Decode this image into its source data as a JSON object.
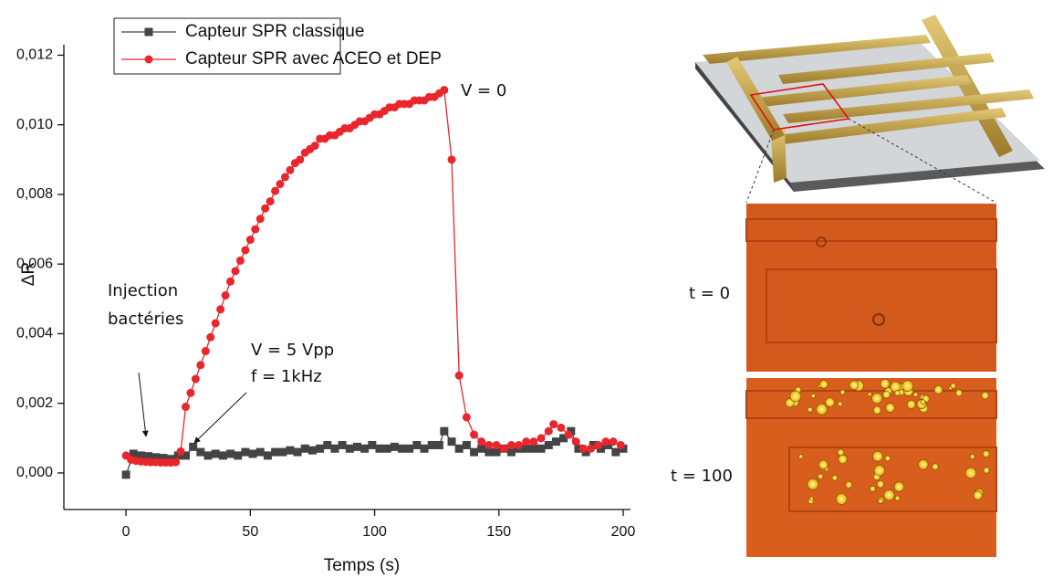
{
  "chart_data": {
    "type": "line",
    "xlabel": "Temps (s)",
    "ylabel": "ΔR",
    "xlim": [
      -25,
      200
    ],
    "ylim": [
      -0.00105,
      0.0123
    ],
    "xticks": [
      0,
      50,
      100,
      150,
      200
    ],
    "yticks": [
      {
        "value": 0,
        "label": "0,000"
      },
      {
        "value": 0.002,
        "label": "0,002"
      },
      {
        "value": 0.004,
        "label": "0,004"
      },
      {
        "value": 0.006,
        "label": "0,006"
      },
      {
        "value": 0.008,
        "label": "0,008"
      },
      {
        "value": 0.01,
        "label": "0,010"
      },
      {
        "value": 0.012,
        "label": "0,012"
      }
    ],
    "legend": "upper left",
    "series": [
      {
        "name": "Capteur SPR classique",
        "color": "#444444",
        "marker": "square",
        "x": [
          0,
          3,
          6,
          9,
          12,
          15,
          18,
          21,
          24,
          27,
          30,
          33,
          36,
          39,
          42,
          45,
          48,
          51,
          54,
          57,
          60,
          63,
          66,
          69,
          72,
          75,
          78,
          81,
          84,
          87,
          90,
          93,
          96,
          99,
          102,
          105,
          108,
          111,
          114,
          117,
          120,
          123,
          126,
          128,
          131,
          134,
          137,
          140,
          143,
          146,
          149,
          152,
          155,
          158,
          161,
          164,
          167,
          170,
          173,
          176,
          179,
          182,
          185,
          188,
          191,
          194,
          197,
          200
        ],
        "values": [
          -5e-05,
          0.00055,
          0.0005,
          0.00048,
          0.00045,
          0.00043,
          0.0004,
          0.0005,
          0.0005,
          0.00075,
          0.0006,
          0.0005,
          0.00055,
          0.0005,
          0.00055,
          0.0005,
          0.0006,
          0.00055,
          0.0006,
          0.0005,
          0.0006,
          0.0006,
          0.00065,
          0.0006,
          0.0007,
          0.00065,
          0.0007,
          0.0008,
          0.0007,
          0.0008,
          0.0007,
          0.00075,
          0.0007,
          0.0008,
          0.0007,
          0.0007,
          0.00075,
          0.0007,
          0.0007,
          0.0008,
          0.0007,
          0.0008,
          0.0008,
          0.0012,
          0.0009,
          0.0007,
          0.0008,
          0.0006,
          0.0007,
          0.0006,
          0.0006,
          0.0007,
          0.0006,
          0.0007,
          0.0007,
          0.0007,
          0.0007,
          0.0008,
          0.0009,
          0.001,
          0.0012,
          0.0007,
          0.0006,
          0.0008,
          0.0007,
          0.0008,
          0.0006,
          0.0007
        ]
      },
      {
        "name": "Capteur SPR avec ACEO et DEP",
        "color": "#e8262b",
        "marker": "circle",
        "x": [
          0,
          2,
          4,
          6,
          8,
          10,
          12,
          14,
          16,
          18,
          20,
          22,
          24,
          26,
          28,
          30,
          32,
          34,
          36,
          38,
          40,
          42,
          44,
          46,
          48,
          50,
          52,
          54,
          56,
          58,
          60,
          62,
          64,
          66,
          68,
          70,
          72,
          74,
          76,
          78,
          80,
          82,
          84,
          86,
          88,
          90,
          92,
          94,
          96,
          98,
          100,
          102,
          104,
          106,
          108,
          110,
          112,
          114,
          116,
          118,
          120,
          122,
          124,
          126,
          128,
          131,
          134,
          137,
          140,
          143,
          146,
          149,
          152,
          155,
          158,
          161,
          164,
          167,
          170,
          172,
          175,
          178,
          181,
          184,
          187,
          190,
          193,
          196,
          199
        ],
        "values": [
          0.0005,
          0.00038,
          0.00035,
          0.00033,
          0.00032,
          0.00031,
          0.00031,
          0.0003,
          0.0003,
          0.0003,
          0.00031,
          0.00062,
          0.0019,
          0.0023,
          0.0027,
          0.0031,
          0.0035,
          0.0039,
          0.0043,
          0.0047,
          0.0051,
          0.0055,
          0.0058,
          0.0061,
          0.0064,
          0.0067,
          0.007,
          0.0073,
          0.0076,
          0.0078,
          0.0081,
          0.0083,
          0.0085,
          0.0087,
          0.0089,
          0.009,
          0.0092,
          0.0093,
          0.0094,
          0.0096,
          0.0096,
          0.0097,
          0.0097,
          0.0098,
          0.0099,
          0.0099,
          0.01,
          0.0101,
          0.0101,
          0.0102,
          0.0103,
          0.0103,
          0.0104,
          0.0105,
          0.0105,
          0.0106,
          0.0106,
          0.0106,
          0.0107,
          0.0107,
          0.0107,
          0.0108,
          0.0108,
          0.0109,
          0.011,
          0.009,
          0.0028,
          0.0016,
          0.0011,
          0.0009,
          0.0008,
          0.0008,
          0.0007,
          0.0008,
          0.0008,
          0.0009,
          0.0009,
          0.001,
          0.0012,
          0.0014,
          0.0013,
          0.0011,
          0.0009,
          0.0007,
          0.0007,
          0.0008,
          0.0009,
          0.0009,
          0.0008
        ]
      }
    ],
    "annotations": [
      "V = 0",
      "Injection",
      "bactéries",
      "V = 5 Vpp",
      "f = 1kHz"
    ]
  },
  "image_labels": [
    "t = 0",
    "t = 100"
  ]
}
